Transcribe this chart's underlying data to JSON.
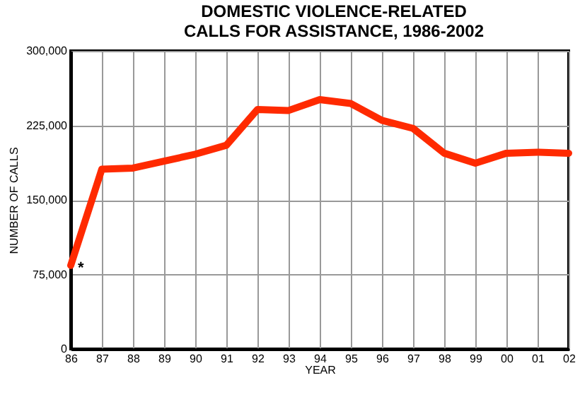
{
  "chart_data": {
    "type": "line",
    "title": "DOMESTIC VIOLENCE-RELATED\nCALLS FOR ASSISTANCE, 1986-2002",
    "xlabel": "YEAR",
    "ylabel": "NUMBER OF CALLS",
    "categories": [
      "86",
      "87",
      "88",
      "89",
      "90",
      "91",
      "92",
      "93",
      "94",
      "95",
      "96",
      "97",
      "98",
      "99",
      "00",
      "01",
      "02"
    ],
    "series": [
      {
        "color": "#ff2a00",
        "values": [
          84000,
          181000,
          182000,
          189000,
          196000,
          205000,
          241000,
          240000,
          251000,
          247000,
          230000,
          222000,
          197000,
          187000,
          197000,
          198000,
          197000
        ]
      }
    ],
    "ylim": [
      0,
      300000
    ],
    "yticks": [
      0,
      {
        "value": 75000,
        "label": "75,000"
      },
      {
        "value": 150000,
        "label": "150,000"
      },
      {
        "value": 225000,
        "label": "225,000"
      },
      {
        "value": 300000,
        "label": "300,000"
      }
    ],
    "grid": true,
    "legend": false,
    "annotations": [
      {
        "text": "*",
        "x": "86",
        "y": 84000
      }
    ]
  }
}
